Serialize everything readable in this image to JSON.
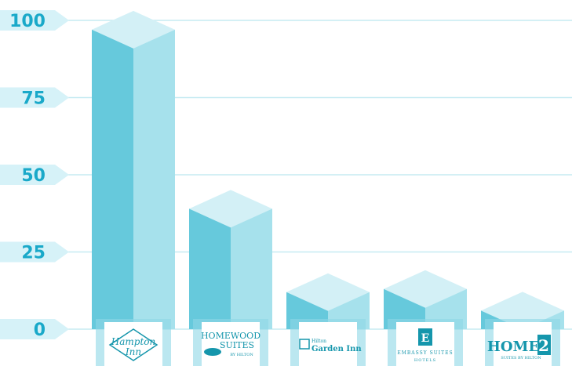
{
  "chart_data": {
    "type": "bar",
    "categories": [
      "Hampton Inn",
      "Homewood Suites by Hilton",
      "Hilton Garden Inn",
      "Embassy Suites Hotels",
      "Home2 Suites by Hilton"
    ],
    "values": [
      97,
      39,
      12,
      13,
      6
    ],
    "ylim": [
      0,
      100
    ],
    "yticks": [
      "0",
      "25",
      "50",
      "75",
      "100"
    ],
    "title": "",
    "xlabel": "",
    "ylabel": "",
    "grid": true,
    "legend": "none"
  },
  "logos": [
    {
      "lines": [
        "Hampton",
        "Inn"
      ]
    },
    {
      "lines": [
        "HOMEWOOD",
        "SUITES",
        "BY HILTON"
      ]
    },
    {
      "lines": [
        "Hilton",
        "Garden Inn"
      ]
    },
    {
      "lines": [
        "E",
        "EMBASSY SUITES",
        "HOTELS"
      ]
    },
    {
      "lines": [
        "HOME",
        "2",
        "SUITES BY HILTON"
      ]
    }
  ],
  "colors": {
    "front": "#66c9dc",
    "side": "#a6e1ec",
    "top": "#d3f0f6",
    "gridline": "#c6ebf2",
    "tick_bg": "#d6f2f8",
    "tick_text": "#1aa9c9",
    "logo": "#1596ac"
  }
}
